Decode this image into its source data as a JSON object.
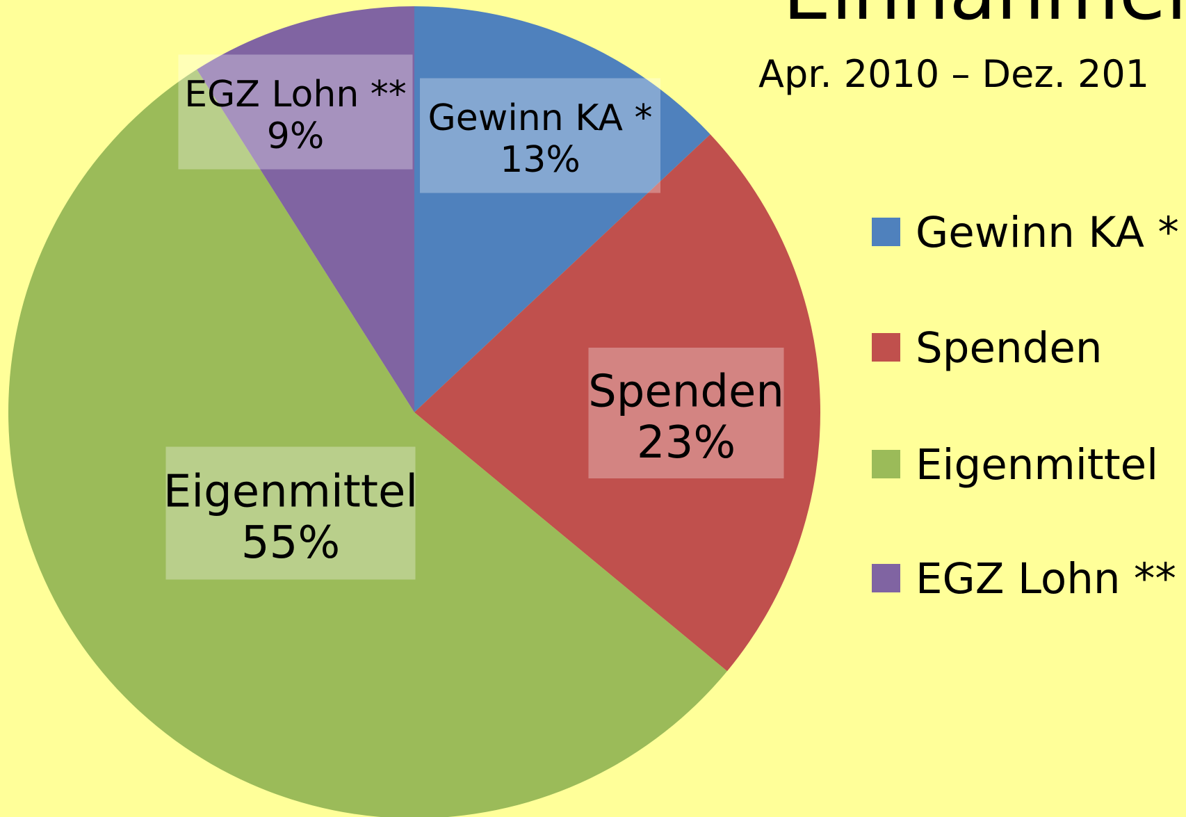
{
  "chart_data": {
    "type": "pie",
    "title": "Einnahmen",
    "subtitle": "Apr. 2010 – Dez. 201",
    "categories": [
      "Gewinn KA *",
      "Spenden",
      "Eigenmittel",
      "EGZ Lohn **"
    ],
    "values": [
      13,
      23,
      55,
      9
    ],
    "value_labels": [
      "13%",
      "23%",
      "55%",
      "9%"
    ],
    "colors": [
      "#4f81bd",
      "#c0504d",
      "#9bbb59",
      "#8064a2"
    ],
    "legend": "right"
  }
}
